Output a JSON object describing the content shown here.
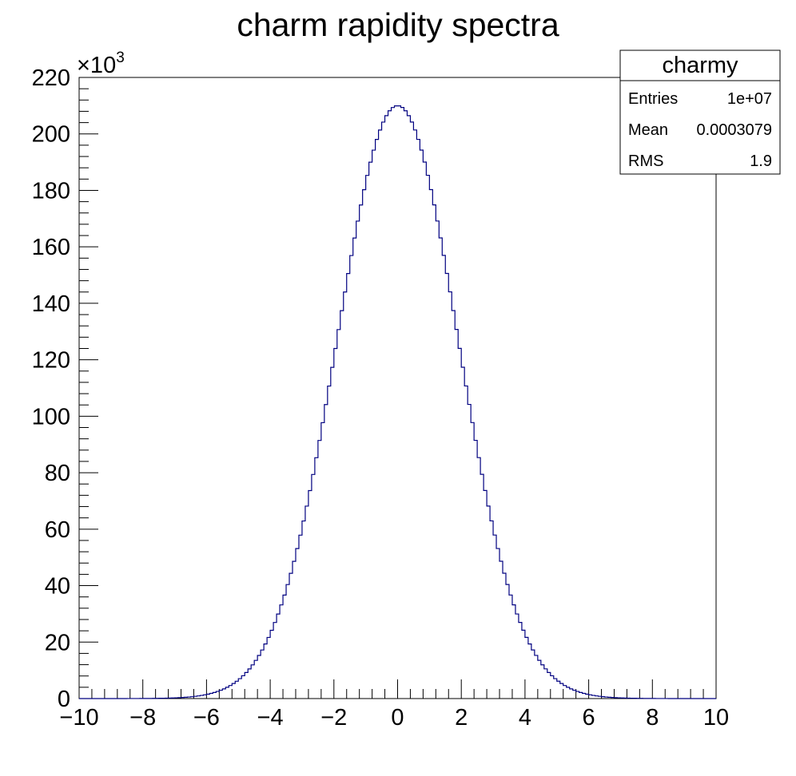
{
  "chart_data": {
    "type": "bar",
    "title": "charm rapidity spectra",
    "xlabel": "",
    "ylabel": "",
    "xlim": [
      -10,
      10
    ],
    "ylim": [
      0,
      220000
    ],
    "x_ticks": [
      "−10",
      "−8",
      "−6",
      "−4",
      "−2",
      "0",
      "2",
      "4",
      "6",
      "8",
      "10"
    ],
    "y_ticks": [
      "0",
      "20",
      "40",
      "60",
      "80",
      "100",
      "120",
      "140",
      "160",
      "180",
      "200",
      "220"
    ],
    "y_exponent_base": "×10",
    "y_exponent_power": "3",
    "histogram": {
      "x_start": -10,
      "x_end": 10,
      "n_bins": 200,
      "peak": 210000,
      "mean": 0.0003079,
      "rms": 1.9
    },
    "colors": {
      "line": "#000080",
      "axis": "#000000",
      "background": "#ffffff"
    },
    "stats_box": {
      "title": "charmy",
      "entries_label": "Entries",
      "entries_value": "1e+07",
      "mean_label": "Mean",
      "mean_value": "0.0003079",
      "rms_label": "RMS",
      "rms_value": "1.9",
      "placement": "top-right"
    }
  }
}
